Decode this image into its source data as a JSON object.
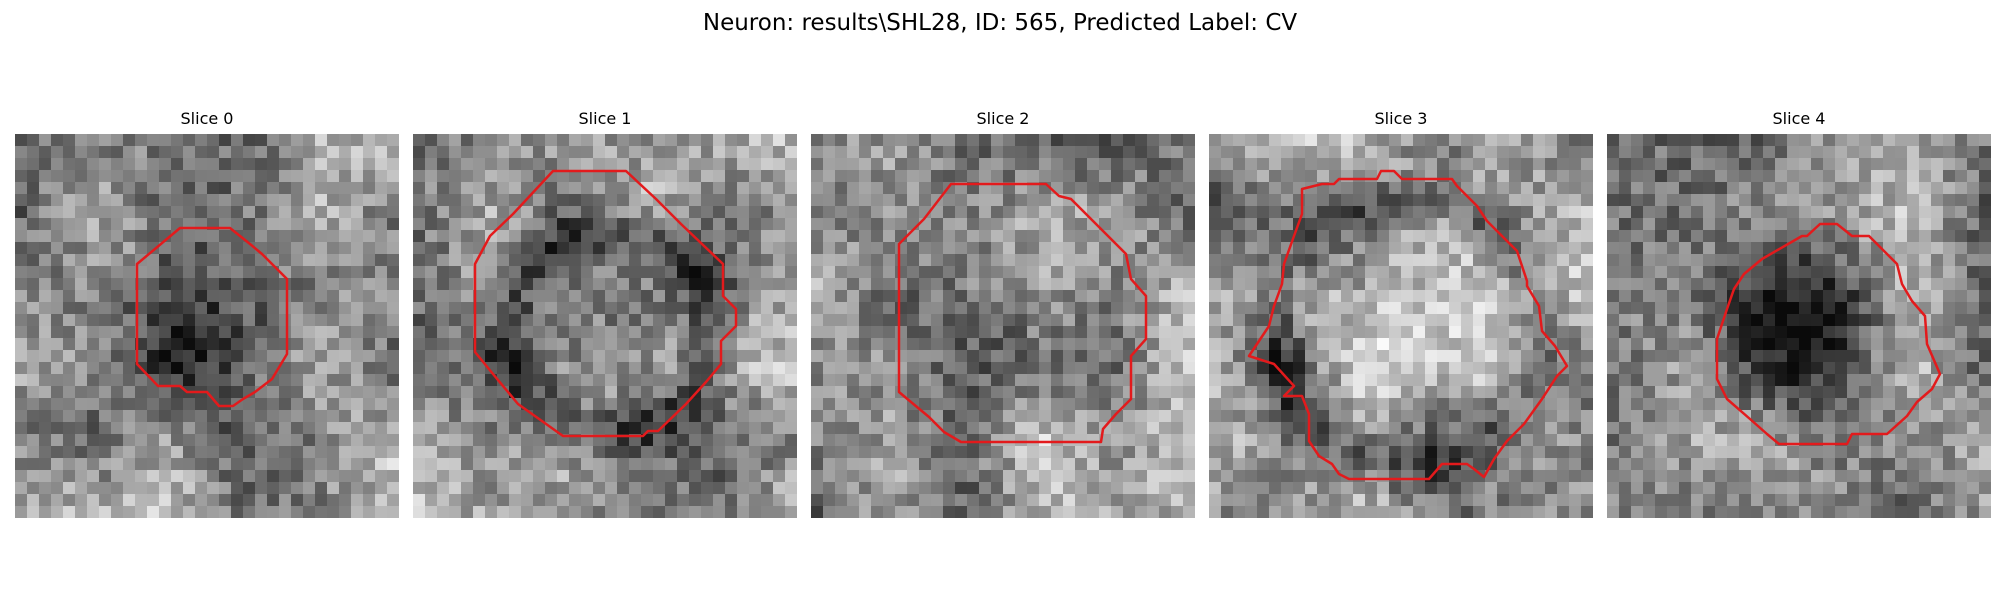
{
  "figure": {
    "title": "Neuron: results\\SHL28, ID: 565, Predicted Label: CV"
  },
  "contour_color": "#e31a1c",
  "slices": [
    {
      "title": "Slice 0",
      "seed": 11,
      "blob": "dark"
    },
    {
      "title": "Slice 1",
      "seed": 23,
      "blob": "ring"
    },
    {
      "title": "Slice 2",
      "seed": 37,
      "blob": "mixed"
    },
    {
      "title": "Slice 3",
      "seed": 41,
      "blob": "light"
    },
    {
      "title": "Slice 4",
      "seed": 53,
      "blob": "dark"
    }
  ]
}
